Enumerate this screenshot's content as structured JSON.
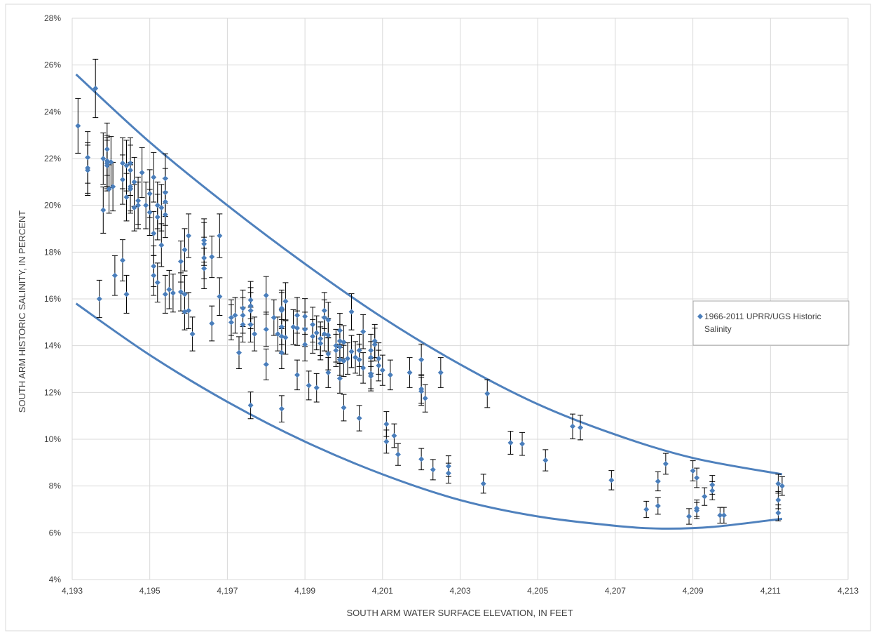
{
  "chart_data": {
    "type": "scatter",
    "xlabel": "SOUTH ARM WATER SURFACE ELEVATION, IN FEET",
    "ylabel": "SOUTH ARM HISTORIC SALINITY, IN PERCENT",
    "xlim": [
      4193,
      4213
    ],
    "ylim": [
      4,
      28
    ],
    "x_ticks": [
      4193,
      4195,
      4197,
      4199,
      4201,
      4203,
      4205,
      4207,
      4209,
      4211,
      4213
    ],
    "x_tick_labels": [
      "4,193",
      "4,195",
      "4,197",
      "4,199",
      "4,201",
      "4,203",
      "4,205",
      "4,207",
      "4,209",
      "4,211",
      "4,213"
    ],
    "y_ticks": [
      4,
      6,
      8,
      10,
      12,
      14,
      16,
      18,
      20,
      22,
      24,
      26,
      28
    ],
    "y_tick_labels": [
      "4%",
      "6%",
      "8%",
      "10%",
      "12%",
      "14%",
      "16%",
      "18%",
      "20%",
      "22%",
      "24%",
      "26%",
      "28%"
    ],
    "grid": true,
    "legend": {
      "entries": [
        {
          "label_line1": "1966-2011 UPRR/UGS Historic",
          "label_line2": "Salinity"
        }
      ],
      "position": "right"
    },
    "colors": {
      "series": "#4a7ebb",
      "envelope": "#4f81bd",
      "error_bar": "#000000",
      "grid": "#d9d9d9"
    },
    "series": [
      {
        "marker": "diamond",
        "error_fraction": 0.05,
        "points": [
          [
            4193.15,
            23.4
          ],
          [
            4193.4,
            22.05
          ],
          [
            4193.4,
            21.6
          ],
          [
            4193.4,
            21.5
          ],
          [
            4193.6,
            25.0
          ],
          [
            4193.7,
            16.0
          ],
          [
            4193.8,
            22.0
          ],
          [
            4193.8,
            19.8
          ],
          [
            4193.9,
            22.4
          ],
          [
            4193.9,
            21.8
          ],
          [
            4193.9,
            21.7
          ],
          [
            4193.9,
            21.9
          ],
          [
            4193.95,
            20.7
          ],
          [
            4194.0,
            21.85
          ],
          [
            4194.05,
            20.8
          ],
          [
            4194.1,
            17.0
          ],
          [
            4194.3,
            21.8
          ],
          [
            4194.3,
            21.1
          ],
          [
            4194.3,
            17.65
          ],
          [
            4194.4,
            21.7
          ],
          [
            4194.4,
            20.35
          ],
          [
            4194.4,
            16.2
          ],
          [
            4194.5,
            21.8
          ],
          [
            4194.5,
            21.5
          ],
          [
            4194.5,
            20.8
          ],
          [
            4194.5,
            20.7
          ],
          [
            4194.6,
            21.0
          ],
          [
            4194.6,
            19.9
          ],
          [
            4194.7,
            20.0
          ],
          [
            4194.7,
            20.2
          ],
          [
            4194.8,
            21.4
          ],
          [
            4194.9,
            20.0
          ],
          [
            4195.0,
            19.7
          ],
          [
            4195.0,
            20.5
          ],
          [
            4195.1,
            21.2
          ],
          [
            4195.1,
            18.8
          ],
          [
            4195.1,
            17.4
          ],
          [
            4195.1,
            17.0
          ],
          [
            4195.2,
            20.0
          ],
          [
            4195.2,
            19.5
          ],
          [
            4195.2,
            16.7
          ],
          [
            4195.3,
            19.9
          ],
          [
            4195.3,
            18.3
          ],
          [
            4195.4,
            21.15
          ],
          [
            4195.4,
            20.55
          ],
          [
            4195.4,
            20.15
          ],
          [
            4195.4,
            19.6
          ],
          [
            4195.4,
            16.2
          ],
          [
            4195.5,
            16.4
          ],
          [
            4195.6,
            16.25
          ],
          [
            4195.8,
            17.6
          ],
          [
            4195.8,
            16.3
          ],
          [
            4195.9,
            18.1
          ],
          [
            4195.9,
            16.2
          ],
          [
            4195.9,
            15.45
          ],
          [
            4196.0,
            18.7
          ],
          [
            4196.0,
            15.5
          ],
          [
            4196.1,
            14.5
          ],
          [
            4196.4,
            18.5
          ],
          [
            4196.4,
            18.35
          ],
          [
            4196.4,
            17.75
          ],
          [
            4196.4,
            17.3
          ],
          [
            4196.6,
            17.8
          ],
          [
            4196.6,
            14.95
          ],
          [
            4196.8,
            18.7
          ],
          [
            4196.8,
            16.1
          ],
          [
            4197.1,
            15.2
          ],
          [
            4197.1,
            15.0
          ],
          [
            4197.2,
            15.3
          ],
          [
            4197.3,
            13.7
          ],
          [
            4197.4,
            15.6
          ],
          [
            4197.4,
            15.3
          ],
          [
            4197.4,
            14.9
          ],
          [
            4197.6,
            15.95
          ],
          [
            4197.6,
            15.7
          ],
          [
            4197.6,
            15.5
          ],
          [
            4197.6,
            14.9
          ],
          [
            4197.6,
            11.45
          ],
          [
            4197.7,
            14.5
          ],
          [
            4198.0,
            16.15
          ],
          [
            4198.0,
            14.7
          ],
          [
            4198.0,
            13.2
          ],
          [
            4198.2,
            15.2
          ],
          [
            4198.3,
            14.5
          ],
          [
            4198.4,
            15.6
          ],
          [
            4198.4,
            15.5
          ],
          [
            4198.4,
            14.8
          ],
          [
            4198.4,
            14.4
          ],
          [
            4198.4,
            13.7
          ],
          [
            4198.4,
            11.3
          ],
          [
            4198.5,
            15.9
          ],
          [
            4198.5,
            14.35
          ],
          [
            4198.7,
            14.8
          ],
          [
            4198.8,
            15.3
          ],
          [
            4198.8,
            14.75
          ],
          [
            4198.8,
            12.75
          ],
          [
            4199.0,
            15.25
          ],
          [
            4199.0,
            14.7
          ],
          [
            4199.0,
            14.05
          ],
          [
            4199.1,
            12.3
          ],
          [
            4199.2,
            14.9
          ],
          [
            4199.2,
            14.4
          ],
          [
            4199.3,
            14.55
          ],
          [
            4199.3,
            12.2
          ],
          [
            4199.4,
            14.3
          ],
          [
            4199.4,
            14.1
          ],
          [
            4199.5,
            15.5
          ],
          [
            4199.5,
            15.2
          ],
          [
            4199.5,
            14.5
          ],
          [
            4199.6,
            15.1
          ],
          [
            4199.6,
            14.45
          ],
          [
            4199.6,
            13.65
          ],
          [
            4199.6,
            12.85
          ],
          [
            4199.8,
            14.0
          ],
          [
            4199.8,
            13.8
          ],
          [
            4199.9,
            14.65
          ],
          [
            4199.9,
            14.2
          ],
          [
            4199.9,
            13.95
          ],
          [
            4199.9,
            13.4
          ],
          [
            4199.9,
            12.6
          ],
          [
            4200.0,
            14.15
          ],
          [
            4200.0,
            13.35
          ],
          [
            4200.0,
            11.35
          ],
          [
            4200.1,
            13.45
          ],
          [
            4200.2,
            15.45
          ],
          [
            4200.2,
            13.75
          ],
          [
            4200.3,
            13.5
          ],
          [
            4200.4,
            13.8
          ],
          [
            4200.4,
            13.4
          ],
          [
            4200.4,
            10.9
          ],
          [
            4200.5,
            14.6
          ],
          [
            4200.5,
            13.05
          ],
          [
            4200.7,
            13.8
          ],
          [
            4200.7,
            13.5
          ],
          [
            4200.7,
            12.8
          ],
          [
            4200.7,
            12.7
          ],
          [
            4200.8,
            14.2
          ],
          [
            4200.8,
            14.05
          ],
          [
            4200.9,
            13.45
          ],
          [
            4200.9,
            13.15
          ],
          [
            4201.0,
            12.95
          ],
          [
            4201.1,
            10.65
          ],
          [
            4201.1,
            9.9
          ],
          [
            4201.2,
            12.75
          ],
          [
            4201.3,
            10.15
          ],
          [
            4201.4,
            9.35
          ],
          [
            4201.7,
            12.85
          ],
          [
            4202.0,
            13.4
          ],
          [
            4202.0,
            12.15
          ],
          [
            4202.0,
            12.05
          ],
          [
            4202.0,
            9.15
          ],
          [
            4202.1,
            11.75
          ],
          [
            4202.3,
            8.7
          ],
          [
            4202.5,
            12.85
          ],
          [
            4202.7,
            8.85
          ],
          [
            4202.7,
            8.55
          ],
          [
            4203.6,
            8.1
          ],
          [
            4203.7,
            11.95
          ],
          [
            4204.3,
            9.85
          ],
          [
            4204.6,
            9.8
          ],
          [
            4205.2,
            9.1
          ],
          [
            4205.9,
            10.55
          ],
          [
            4206.1,
            10.5
          ],
          [
            4206.9,
            8.25
          ],
          [
            4207.8,
            7.0
          ],
          [
            4208.1,
            8.2
          ],
          [
            4208.1,
            7.15
          ],
          [
            4208.3,
            8.95
          ],
          [
            4208.9,
            6.7
          ],
          [
            4209.0,
            8.65
          ],
          [
            4209.1,
            8.35
          ],
          [
            4209.1,
            7.05
          ],
          [
            4209.1,
            6.95
          ],
          [
            4209.3,
            7.55
          ],
          [
            4209.5,
            8.05
          ],
          [
            4209.5,
            7.8
          ],
          [
            4209.7,
            6.75
          ],
          [
            4209.8,
            6.75
          ],
          [
            4211.2,
            8.1
          ],
          [
            4211.2,
            7.4
          ],
          [
            4211.2,
            6.85
          ],
          [
            4211.3,
            8.0
          ]
        ]
      }
    ],
    "envelopes": [
      {
        "points": [
          [
            4193.1,
            25.6
          ],
          [
            4195.0,
            22.7
          ],
          [
            4197.0,
            20.0
          ],
          [
            4199.0,
            17.5
          ],
          [
            4201.0,
            15.2
          ],
          [
            4203.0,
            13.2
          ],
          [
            4205.0,
            11.5
          ],
          [
            4207.0,
            10.2
          ],
          [
            4209.0,
            9.2
          ],
          [
            4211.3,
            8.5
          ]
        ]
      },
      {
        "points": [
          [
            4193.1,
            15.8
          ],
          [
            4195.0,
            13.6
          ],
          [
            4197.0,
            11.6
          ],
          [
            4199.0,
            9.9
          ],
          [
            4201.0,
            8.5
          ],
          [
            4203.0,
            7.4
          ],
          [
            4205.0,
            6.7
          ],
          [
            4207.0,
            6.3
          ],
          [
            4208.2,
            6.18
          ],
          [
            4209.5,
            6.25
          ],
          [
            4211.3,
            6.6
          ]
        ]
      }
    ]
  }
}
